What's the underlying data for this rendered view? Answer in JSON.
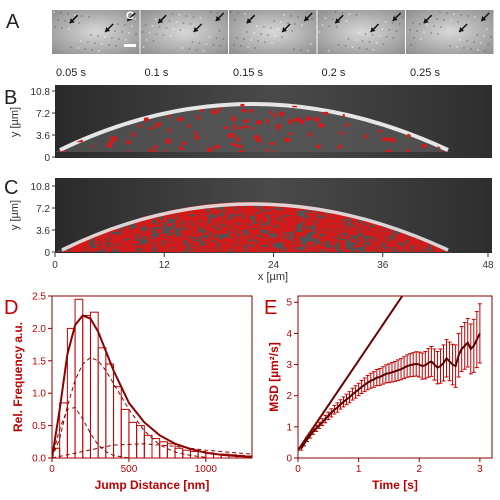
{
  "panels": {
    "A": {
      "letter": "A",
      "corner_label": "C",
      "frames": [
        {
          "time": "0.05 s"
        },
        {
          "time": "0.1 s"
        },
        {
          "time": "0.15 s"
        },
        {
          "time": "0.2 s"
        },
        {
          "time": "0.25 s"
        }
      ]
    },
    "B": {
      "letter": "B",
      "ylabel": "y [µm]",
      "yticks": [
        "10.8",
        "7.2",
        "3.6",
        "0"
      ]
    },
    "C": {
      "letter": "C",
      "ylabel": "y [µm]",
      "yticks": [
        "10.8",
        "7.2",
        "3.6",
        "0"
      ],
      "xlabel": "x [µm]",
      "xticks": [
        "0",
        "12",
        "24",
        "36",
        "48"
      ]
    }
  },
  "chart_data": [
    {
      "panel": "D",
      "type": "bar",
      "xlabel": "Jump Distance [nm]",
      "ylabel": "Rel. Frequency a.u.",
      "xlim": [
        0,
        1300
      ],
      "ylim": [
        0,
        2.5
      ],
      "xticks": [
        0,
        500,
        1000
      ],
      "yticks": [
        0.0,
        0.5,
        1.0,
        1.5,
        2.0,
        2.5
      ],
      "bin_width": 50,
      "bins_start": [
        0,
        50,
        100,
        150,
        200,
        250,
        300,
        350,
        400,
        450,
        500,
        550,
        600,
        650,
        700,
        750,
        800,
        850,
        900,
        950,
        1000,
        1050,
        1100,
        1150,
        1200,
        1250
      ],
      "values": [
        0.15,
        0.85,
        2.0,
        2.45,
        2.2,
        2.25,
        1.7,
        1.45,
        1.1,
        0.75,
        0.55,
        0.5,
        0.35,
        0.3,
        0.25,
        0.22,
        0.15,
        0.12,
        0.1,
        0.1,
        0.08,
        0.06,
        0.06,
        0.05,
        0.04,
        0.03
      ],
      "fit_total": {
        "x": [
          0,
          50,
          100,
          150,
          200,
          250,
          300,
          350,
          400,
          450,
          500,
          600,
          700,
          800,
          900,
          1000,
          1100,
          1200,
          1300
        ],
        "y": [
          0.0,
          0.75,
          1.6,
          2.05,
          2.2,
          2.15,
          1.95,
          1.65,
          1.35,
          1.1,
          0.85,
          0.55,
          0.35,
          0.22,
          0.14,
          0.08,
          0.05,
          0.03,
          0.02
        ]
      },
      "fit_component_1": {
        "x": [
          0,
          50,
          100,
          150,
          200,
          250,
          300,
          350,
          400,
          500
        ],
        "y": [
          0.0,
          0.45,
          0.75,
          0.78,
          0.6,
          0.38,
          0.2,
          0.1,
          0.04,
          0.0
        ]
      },
      "fit_component_2": {
        "x": [
          0,
          50,
          100,
          150,
          200,
          250,
          300,
          350,
          400,
          500,
          600,
          700,
          800,
          900,
          1000
        ],
        "y": [
          0.0,
          0.3,
          0.8,
          1.2,
          1.45,
          1.55,
          1.5,
          1.35,
          1.15,
          0.75,
          0.42,
          0.2,
          0.09,
          0.04,
          0.01
        ]
      },
      "fit_component_3": {
        "x": [
          0,
          200,
          400,
          600,
          800,
          1000,
          1200,
          1300
        ],
        "y": [
          0.0,
          0.1,
          0.2,
          0.22,
          0.18,
          0.12,
          0.08,
          0.06
        ]
      }
    },
    {
      "panel": "E",
      "type": "line",
      "xlabel": "Time [s]",
      "ylabel": "MSD [µm²/s]",
      "xlim": [
        0,
        3.2
      ],
      "ylim": [
        0,
        5.2
      ],
      "xticks": [
        0,
        1,
        2,
        3
      ],
      "yticks": [
        0,
        1,
        2,
        3,
        4,
        5
      ],
      "reference_line": {
        "x": [
          0,
          1.72
        ],
        "y": [
          0.25,
          5.2
        ]
      },
      "msd": {
        "x": [
          0.05,
          0.1,
          0.15,
          0.2,
          0.25,
          0.3,
          0.35,
          0.4,
          0.45,
          0.5,
          0.55,
          0.6,
          0.65,
          0.7,
          0.75,
          0.8,
          0.85,
          0.9,
          0.95,
          1.0,
          1.05,
          1.1,
          1.15,
          1.2,
          1.25,
          1.3,
          1.35,
          1.4,
          1.45,
          1.5,
          1.55,
          1.6,
          1.65,
          1.7,
          1.75,
          1.8,
          1.85,
          1.9,
          1.95,
          2.0,
          2.05,
          2.1,
          2.15,
          2.2,
          2.25,
          2.3,
          2.35,
          2.4,
          2.45,
          2.5,
          2.55,
          2.6,
          2.65,
          2.7,
          2.75,
          2.8,
          2.85,
          2.9,
          2.95,
          3.0
        ],
        "y": [
          0.3,
          0.45,
          0.6,
          0.72,
          0.85,
          0.95,
          1.05,
          1.15,
          1.25,
          1.35,
          1.45,
          1.55,
          1.62,
          1.72,
          1.8,
          1.88,
          1.95,
          2.05,
          2.12,
          2.2,
          2.28,
          2.35,
          2.42,
          2.48,
          2.52,
          2.58,
          2.6,
          2.65,
          2.7,
          2.72,
          2.75,
          2.78,
          2.82,
          2.85,
          2.9,
          2.95,
          2.98,
          3.0,
          3.02,
          3.0,
          2.95,
          2.98,
          3.05,
          3.1,
          3.0,
          2.9,
          2.95,
          3.05,
          3.2,
          3.1,
          3.0,
          2.95,
          3.3,
          3.5,
          3.6,
          3.7,
          3.5,
          3.6,
          3.8,
          4.0
        ],
        "err": [
          0.05,
          0.06,
          0.07,
          0.08,
          0.09,
          0.1,
          0.1,
          0.11,
          0.12,
          0.12,
          0.13,
          0.14,
          0.15,
          0.15,
          0.16,
          0.17,
          0.18,
          0.19,
          0.2,
          0.2,
          0.21,
          0.22,
          0.23,
          0.24,
          0.25,
          0.26,
          0.27,
          0.28,
          0.29,
          0.3,
          0.31,
          0.32,
          0.33,
          0.34,
          0.35,
          0.36,
          0.37,
          0.38,
          0.39,
          0.4,
          0.42,
          0.44,
          0.46,
          0.48,
          0.5,
          0.52,
          0.55,
          0.58,
          0.6,
          0.62,
          0.65,
          0.68,
          0.7,
          0.72,
          0.75,
          0.78,
          0.8,
          0.85,
          0.9,
          0.95
        ]
      }
    }
  ]
}
